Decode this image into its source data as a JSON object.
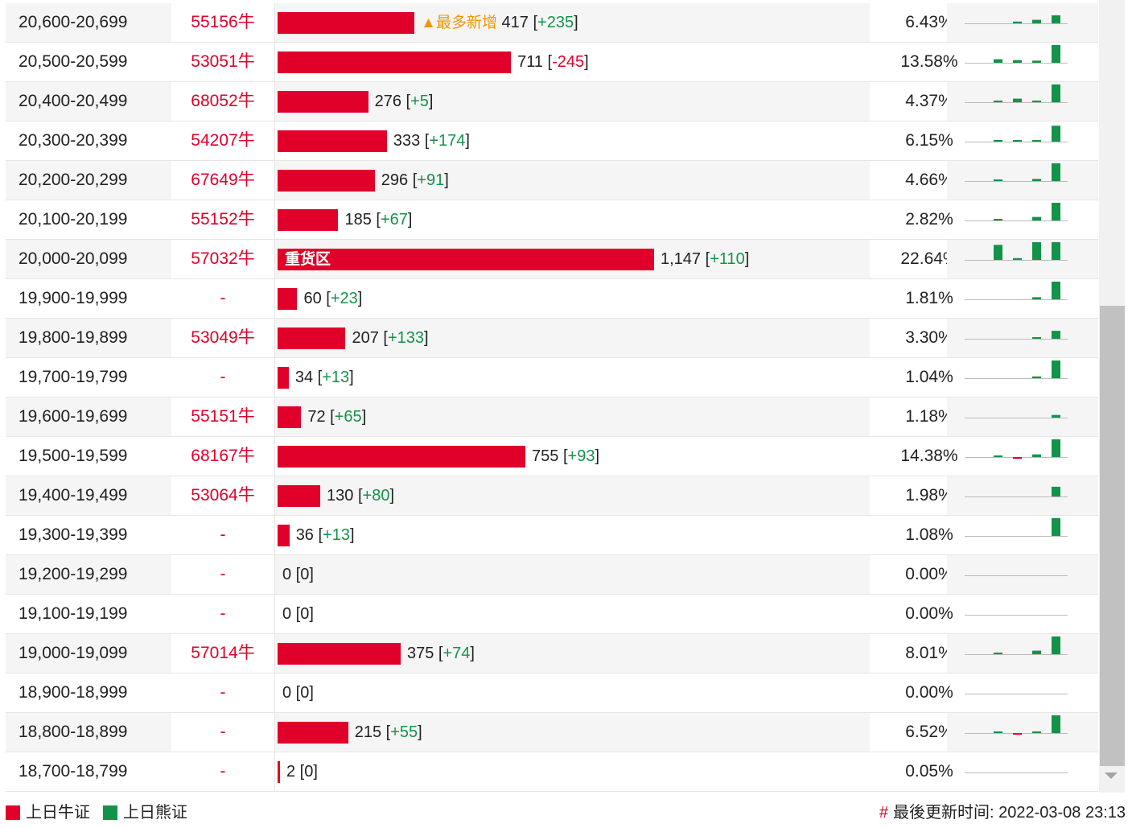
{
  "colors": {
    "bull": "#e0002a",
    "bear": "#13934a",
    "tag": "#f29600",
    "baseline": "#bbbbbb"
  },
  "rows": [
    {
      "range": "20,600-20,699",
      "code": "55156牛",
      "vol": "417",
      "chg": "+235",
      "chg_sign": "pos",
      "pct": "6.43%",
      "bar_ratio": 0.3636,
      "tag": "▲最多新增",
      "label": "",
      "spark": [
        0,
        0,
        0.1,
        0.2,
        0.45,
        1
      ]
    },
    {
      "range": "20,500-20,599",
      "code": "53051牛",
      "vol": "711",
      "chg": "-245",
      "chg_sign": "neg",
      "pct": "13.58%",
      "bar_ratio": 0.6199,
      "tag": "",
      "label": "",
      "spark": [
        0,
        0.2,
        0.15,
        0.12,
        1,
        -0.4
      ]
    },
    {
      "range": "20,400-20,499",
      "code": "68052牛",
      "vol": "276",
      "chg": "+5",
      "chg_sign": "pos",
      "pct": "4.37%",
      "bar_ratio": 0.2406,
      "tag": "",
      "label": "",
      "spark": [
        0,
        0.08,
        0.2,
        0.08,
        1,
        0
      ]
    },
    {
      "range": "20,300-20,399",
      "code": "54207牛",
      "vol": "333",
      "chg": "+174",
      "chg_sign": "pos",
      "pct": "6.15%",
      "bar_ratio": 0.2903,
      "tag": "",
      "label": "",
      "spark": [
        0,
        0.05,
        0.05,
        0.05,
        0.9,
        1
      ]
    },
    {
      "range": "20,200-20,299",
      "code": "67649牛",
      "vol": "296",
      "chg": "+91",
      "chg_sign": "pos",
      "pct": "4.66%",
      "bar_ratio": 0.2581,
      "tag": "",
      "label": "",
      "spark": [
        0,
        0.08,
        0,
        0.12,
        1,
        0.5
      ]
    },
    {
      "range": "20,100-20,199",
      "code": "55152牛",
      "vol": "185",
      "chg": "+67",
      "chg_sign": "pos",
      "pct": "2.82%",
      "bar_ratio": 0.1613,
      "tag": "",
      "label": "",
      "spark": [
        0,
        0.08,
        0,
        0.2,
        1,
        0.7
      ]
    },
    {
      "range": "20,000-20,099",
      "code": "57032牛",
      "vol": "1,147",
      "chg": "+110",
      "chg_sign": "pos",
      "pct": "22.64%",
      "bar_ratio": 1.0,
      "tag": "",
      "label": "重货区",
      "spark": [
        0,
        0.85,
        0.1,
        1,
        1,
        0.25
      ]
    },
    {
      "range": "19,900-19,999",
      "code": "-",
      "vol": "60",
      "chg": "+23",
      "chg_sign": "pos",
      "pct": "1.81%",
      "bar_ratio": 0.0523,
      "tag": "",
      "label": "",
      "spark": [
        0,
        0,
        0,
        0.12,
        1,
        0.9
      ]
    },
    {
      "range": "19,800-19,899",
      "code": "53049牛",
      "vol": "207",
      "chg": "+133",
      "chg_sign": "pos",
      "pct": "3.30%",
      "bar_ratio": 0.1805,
      "tag": "",
      "label": "",
      "spark": [
        0,
        0,
        0,
        0.05,
        0.45,
        1
      ]
    },
    {
      "range": "19,700-19,799",
      "code": "-",
      "vol": "34",
      "chg": "+13",
      "chg_sign": "pos",
      "pct": "1.04%",
      "bar_ratio": 0.0296,
      "tag": "",
      "label": "",
      "spark": [
        0,
        0,
        0,
        0.1,
        1,
        0.7
      ]
    },
    {
      "range": "19,600-19,699",
      "code": "55151牛",
      "vol": "72",
      "chg": "+65",
      "chg_sign": "pos",
      "pct": "1.18%",
      "bar_ratio": 0.0628,
      "tag": "",
      "label": "",
      "spark": [
        0,
        0,
        0,
        0,
        0.15,
        1
      ]
    },
    {
      "range": "19,500-19,599",
      "code": "68167牛",
      "vol": "755",
      "chg": "+93",
      "chg_sign": "pos",
      "pct": "14.38%",
      "bar_ratio": 0.6582,
      "tag": "",
      "label": "",
      "spark": [
        0,
        0.05,
        -0.1,
        0.15,
        1,
        0.18
      ]
    },
    {
      "range": "19,400-19,499",
      "code": "53064牛",
      "vol": "130",
      "chg": "+80",
      "chg_sign": "pos",
      "pct": "1.98%",
      "bar_ratio": 0.1133,
      "tag": "",
      "label": "",
      "spark": [
        0,
        0,
        0,
        0,
        0.55,
        1
      ]
    },
    {
      "range": "19,300-19,399",
      "code": "-",
      "vol": "36",
      "chg": "+13",
      "chg_sign": "pos",
      "pct": "1.08%",
      "bar_ratio": 0.0314,
      "tag": "",
      "label": "",
      "spark": [
        0,
        0,
        0,
        0,
        1,
        0.55
      ]
    },
    {
      "range": "19,200-19,299",
      "code": "-",
      "vol": "0",
      "chg": "0",
      "chg_sign": "none",
      "pct": "0.00%",
      "bar_ratio": 0,
      "tag": "",
      "label": "",
      "spark": [
        0,
        0,
        0,
        0,
        0,
        0
      ]
    },
    {
      "range": "19,100-19,199",
      "code": "-",
      "vol": "0",
      "chg": "0",
      "chg_sign": "none",
      "pct": "0.00%",
      "bar_ratio": 0,
      "tag": "",
      "label": "",
      "spark": [
        0,
        0,
        0,
        0,
        0,
        0
      ]
    },
    {
      "range": "19,000-19,099",
      "code": "57014牛",
      "vol": "375",
      "chg": "+74",
      "chg_sign": "pos",
      "pct": "8.01%",
      "bar_ratio": 0.3269,
      "tag": "",
      "label": "",
      "spark": [
        0,
        0.08,
        0,
        0.2,
        1,
        0.35
      ]
    },
    {
      "range": "18,900-18,999",
      "code": "-",
      "vol": "0",
      "chg": "0",
      "chg_sign": "none",
      "pct": "0.00%",
      "bar_ratio": 0,
      "tag": "",
      "label": "",
      "spark": [
        0,
        0,
        0,
        0,
        0,
        0
      ]
    },
    {
      "range": "18,800-18,899",
      "code": "-",
      "vol": "215",
      "chg": "+55",
      "chg_sign": "pos",
      "pct": "6.52%",
      "bar_ratio": 0.1874,
      "tag": "",
      "label": "",
      "spark": [
        0,
        0.08,
        -0.08,
        0.08,
        1,
        0.35
      ]
    },
    {
      "range": "18,700-18,799",
      "code": "-",
      "vol": "2",
      "chg": "0",
      "chg_sign": "none",
      "pct": "0.05%",
      "bar_ratio": 0.0017,
      "tag": "",
      "label": "",
      "spark": [
        0,
        0,
        0,
        0,
        0,
        0
      ]
    }
  ],
  "legend": {
    "bull_label": "上日牛证",
    "bear_label": "上日熊证"
  },
  "footer": {
    "hash": "#",
    "update_text": "最後更新时间: 2022-03-08 23:13"
  }
}
